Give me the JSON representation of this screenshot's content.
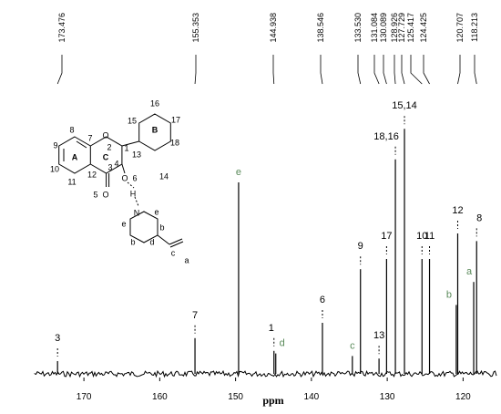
{
  "chart_data": {
    "type": "spectrum",
    "xlabel": "ppm",
    "xlim": [
      176.5,
      115.6
    ],
    "xticks": [
      170,
      160,
      150,
      140,
      130,
      120
    ],
    "ylim": [
      0,
      100
    ],
    "color": "#000000",
    "top_labels": [
      {
        "value": 173.476,
        "label": "173.476"
      },
      {
        "value": 155.353,
        "label": "155.353"
      },
      {
        "value": 144.938,
        "label": "144.938"
      },
      {
        "value": 138.546,
        "label": "138.546"
      },
      {
        "value": 133.53,
        "label": "133.530"
      },
      {
        "value": 131.084,
        "label": "131.084"
      },
      {
        "value": 130.089,
        "label": "130.089"
      },
      {
        "value": 128.926,
        "label": "128.926"
      },
      {
        "value": 127.729,
        "label": "127.729"
      },
      {
        "value": 125.417,
        "label": "125.417"
      },
      {
        "value": 124.425,
        "label": "124.425"
      },
      {
        "value": 120.707,
        "label": "120.707"
      },
      {
        "value": 118.213,
        "label": "118.213"
      }
    ],
    "peak_labels": [
      "3",
      "7",
      "e",
      "1",
      "d",
      "6",
      "c",
      "9",
      "13",
      "17",
      "18,16",
      "15,14",
      "10",
      "11",
      "b",
      "12",
      "a",
      "8"
    ],
    "x": [
      173.476,
      155.353,
      149.6,
      144.938,
      144.7,
      138.546,
      134.6,
      133.53,
      131.084,
      130.089,
      128.926,
      127.729,
      125.417,
      124.425,
      120.9,
      120.707,
      118.6,
      118.213
    ],
    "values": [
      5,
      14,
      75,
      9,
      8,
      20,
      7,
      41,
      6,
      45,
      84,
      96,
      45,
      45,
      27,
      55,
      36,
      52
    ]
  },
  "structure": {
    "labels": [
      "8",
      "9",
      "10",
      "11",
      "A",
      "7",
      "12",
      "C",
      "O",
      "2",
      "1",
      "3",
      "4",
      "O",
      "6",
      "O",
      "5",
      "H",
      "B",
      "13",
      "14",
      "15",
      "16",
      "17",
      "18",
      "N",
      "e",
      "e",
      "b",
      "b",
      "d",
      "c",
      "a"
    ]
  }
}
